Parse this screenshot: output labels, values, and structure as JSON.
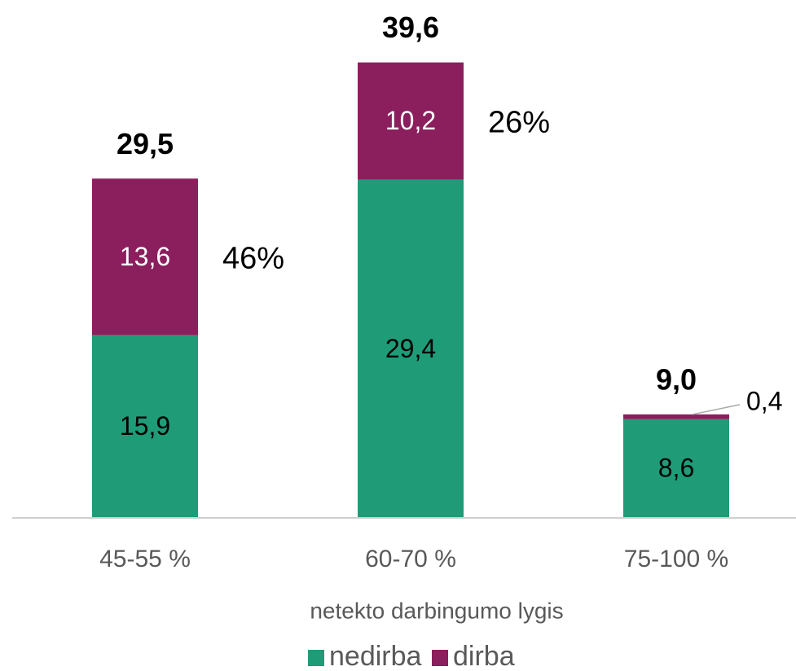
{
  "chart_data": {
    "type": "stacked_bar",
    "categories": [
      "45-55 %",
      "60-70 %",
      "75-100 %"
    ],
    "series": [
      {
        "name": "nedirba",
        "color": "#1f9b78",
        "values": [
          15.9,
          29.4,
          8.6
        ],
        "value_labels": [
          "15,9",
          "29,4",
          "8,6"
        ]
      },
      {
        "name": "dirba",
        "color": "#8b1f5e",
        "values": [
          13.6,
          10.2,
          0.4
        ],
        "value_labels": [
          "13,6",
          "10,2",
          "0,4"
        ]
      }
    ],
    "totals": [
      29.5,
      39.6,
      9.0
    ],
    "total_labels": [
      "29,5",
      "39,6",
      "9,0"
    ],
    "percent_labels": [
      "46%",
      "26%"
    ],
    "x_label": "netekto darbingumo lygis",
    "ylim": [
      0,
      40
    ],
    "legend": "bottom"
  }
}
